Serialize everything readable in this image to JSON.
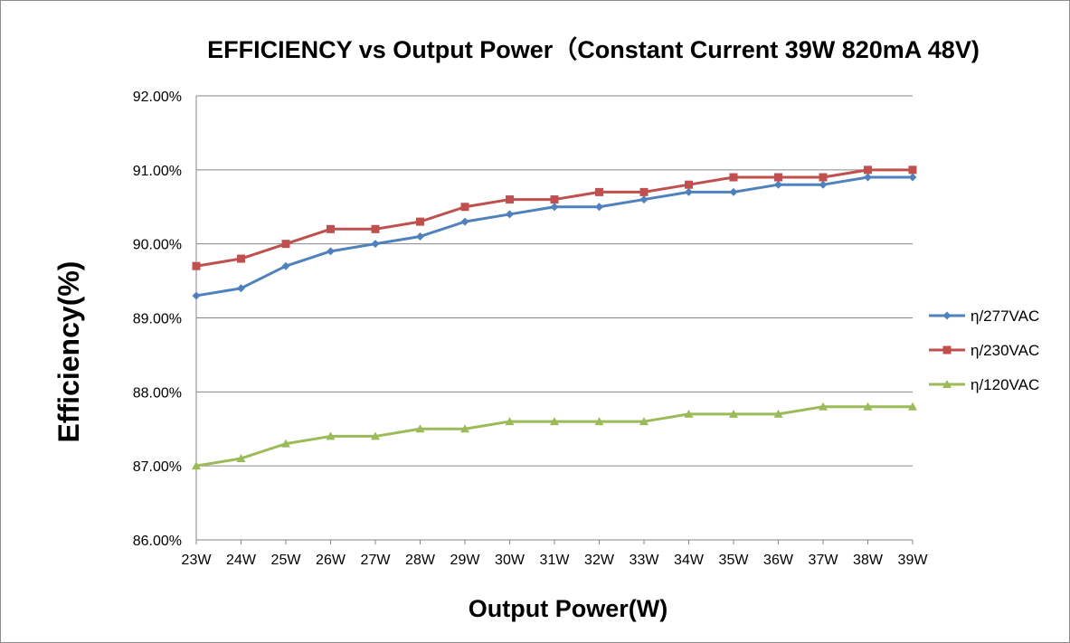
{
  "chart_data": {
    "type": "line",
    "title": "EFFICIENCY vs Output Power（Constant Current 39W 820mA 48V)",
    "xlabel": "Output Power(W)",
    "ylabel": "Efficiency(%)",
    "categories": [
      "23W",
      "24W",
      "25W",
      "26W",
      "27W",
      "28W",
      "29W",
      "30W",
      "31W",
      "32W",
      "33W",
      "34W",
      "35W",
      "36W",
      "37W",
      "38W",
      "39W"
    ],
    "y_ticks": [
      "86.00%",
      "87.00%",
      "88.00%",
      "89.00%",
      "90.00%",
      "91.00%",
      "92.00%"
    ],
    "ylim": [
      86,
      92
    ],
    "grid": true,
    "legend_position": "right",
    "series": [
      {
        "name": "η/277VAC",
        "color": "#4f81bd",
        "marker": "diamond",
        "values": [
          89.3,
          89.4,
          89.7,
          89.9,
          90.0,
          90.1,
          90.3,
          90.4,
          90.5,
          90.5,
          90.6,
          90.7,
          90.7,
          90.8,
          90.8,
          90.9,
          90.9
        ]
      },
      {
        "name": "η/230VAC",
        "color": "#c0504d",
        "marker": "square",
        "values": [
          89.7,
          89.8,
          90.0,
          90.2,
          90.2,
          90.3,
          90.5,
          90.6,
          90.6,
          90.7,
          90.7,
          90.8,
          90.9,
          90.9,
          90.9,
          91.0,
          91.0
        ]
      },
      {
        "name": "η/120VAC",
        "color": "#9bbb59",
        "marker": "triangle",
        "values": [
          87.0,
          87.1,
          87.3,
          87.4,
          87.4,
          87.5,
          87.5,
          87.6,
          87.6,
          87.6,
          87.6,
          87.7,
          87.7,
          87.7,
          87.8,
          87.8,
          87.8
        ]
      }
    ]
  }
}
